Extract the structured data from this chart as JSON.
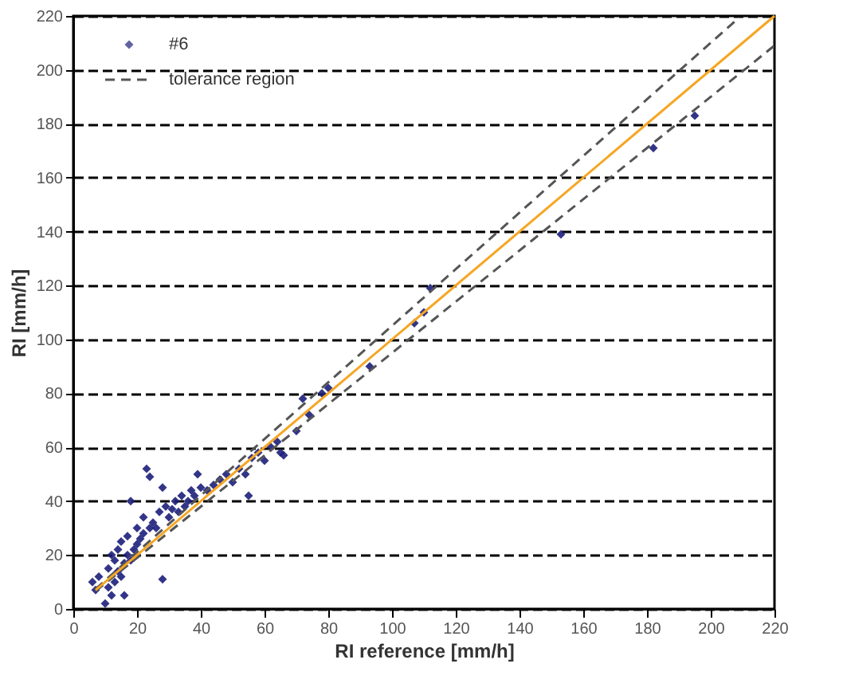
{
  "chart_data": {
    "type": "scatter",
    "xlabel": "RI reference [mm/h]",
    "ylabel": "RI [mm/h]",
    "xlim": [
      0,
      220
    ],
    "ylim": [
      0,
      220
    ],
    "xticks": [
      0,
      20,
      40,
      60,
      80,
      100,
      120,
      140,
      160,
      180,
      200,
      220
    ],
    "yticks": [
      0,
      20,
      40,
      60,
      80,
      100,
      120,
      140,
      160,
      180,
      200,
      220
    ],
    "grid": "y",
    "legend": "top left",
    "series": [
      {
        "name": "#6",
        "type": "scatter",
        "marker": "diamond",
        "color": "#1c1f7a",
        "x": [
          6,
          7,
          8,
          10,
          11,
          11,
          12,
          12,
          13,
          13,
          14,
          14,
          15,
          15,
          16,
          16,
          17,
          17,
          18,
          18,
          19,
          20,
          20,
          21,
          22,
          22,
          23,
          24,
          24,
          25,
          26,
          27,
          28,
          28,
          29,
          30,
          31,
          32,
          33,
          34,
          35,
          36,
          37,
          38,
          39,
          40,
          42,
          44,
          46,
          48,
          50,
          52,
          54,
          55,
          56,
          58,
          60,
          62,
          64,
          65,
          66,
          70,
          72,
          74,
          78,
          80,
          93,
          107,
          110,
          112,
          153,
          182,
          195
        ],
        "values": [
          10,
          7,
          12,
          2,
          8,
          15,
          5,
          20,
          10,
          18,
          14,
          22,
          12,
          25,
          5,
          17,
          20,
          27,
          18,
          40,
          22,
          24,
          30,
          26,
          28,
          34,
          52,
          30,
          49,
          32,
          30,
          36,
          11,
          45,
          38,
          34,
          37,
          40,
          36,
          42,
          38,
          40,
          44,
          42,
          50,
          45,
          44,
          46,
          48,
          50,
          47,
          52,
          50,
          42,
          56,
          58,
          55,
          60,
          62,
          58,
          57,
          66,
          78,
          72,
          80,
          82,
          90,
          106,
          110,
          119,
          139,
          171,
          183
        ]
      },
      {
        "name": "tolerance region",
        "type": "line",
        "marker": "none",
        "line_style": "dashed",
        "color": "#555555",
        "x": [
          7,
          209
        ],
        "values": [
          7.4,
          219.5
        ]
      },
      {
        "type": "line",
        "marker": "none",
        "line_style": "dashed",
        "color": "#555555",
        "x": [
          7,
          220
        ],
        "values": [
          6.6,
          209
        ]
      },
      {
        "type": "line",
        "marker": "none",
        "line_style": "solid",
        "color": "#f5a623",
        "x": [
          7,
          220
        ],
        "values": [
          7,
          220
        ]
      }
    ]
  }
}
